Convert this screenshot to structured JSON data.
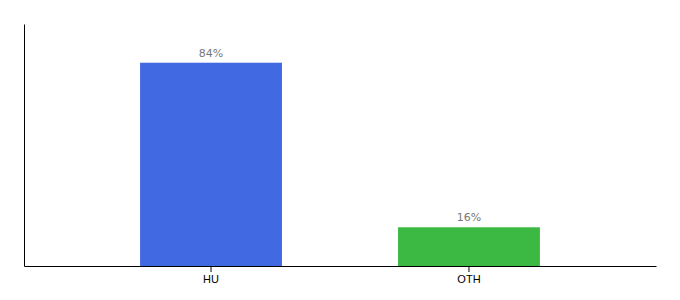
{
  "chart_data": {
    "type": "bar",
    "categories": [
      "HU",
      "OTH"
    ],
    "values": [
      84,
      16
    ],
    "colors": [
      "#4169E1",
      "#3CB943"
    ],
    "value_labels": [
      "84%",
      "16%"
    ],
    "data_labels": true,
    "ylim": [
      0,
      100
    ],
    "tick_labels": "x"
  }
}
